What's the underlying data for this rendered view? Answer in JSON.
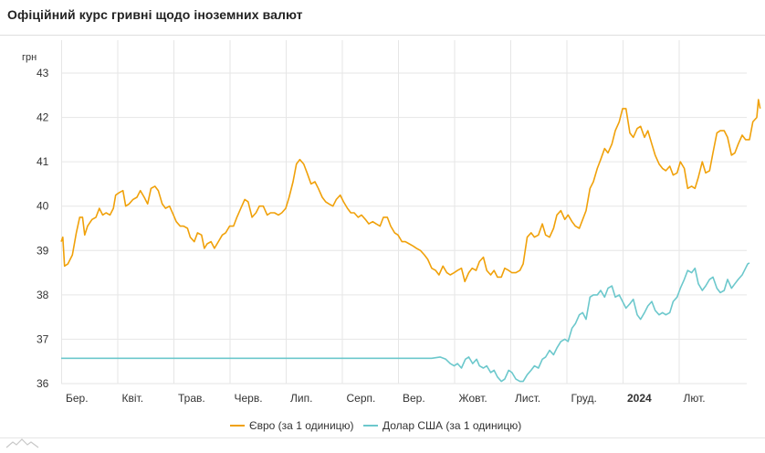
{
  "header": {
    "title": "Офіційний курс гривні щодо іноземних валют"
  },
  "colors": {
    "euro": "#f0a10a",
    "usd": "#6cc8cc",
    "grid": "#e6e6e6"
  },
  "icons": {
    "logo": "mountain-logo-icon"
  },
  "chart_data": {
    "type": "line",
    "title": "Офіційний курс гривні щодо іноземних валют",
    "ylabel": "грн",
    "xlabel": "",
    "ylim": [
      36,
      43
    ],
    "yticks": [
      36,
      37,
      38,
      39,
      40,
      41,
      42,
      43
    ],
    "grid": true,
    "legend_position": "bottom-center",
    "xlim": [
      0,
      12
    ],
    "x_unit": "months since 1 March 2023",
    "xticks": [
      {
        "x": 0,
        "label": "Бер.",
        "bold": false
      },
      {
        "x": 1,
        "label": "Квіт.",
        "bold": false
      },
      {
        "x": 2,
        "label": "Трав.",
        "bold": false
      },
      {
        "x": 3,
        "label": "Черв.",
        "bold": false
      },
      {
        "x": 4,
        "label": "Лип.",
        "bold": false
      },
      {
        "x": 5,
        "label": "Серп.",
        "bold": false
      },
      {
        "x": 6,
        "label": "Вер.",
        "bold": false
      },
      {
        "x": 7,
        "label": "Жовт.",
        "bold": false
      },
      {
        "x": 8,
        "label": "Лист.",
        "bold": false
      },
      {
        "x": 9,
        "label": "Груд.",
        "bold": false
      },
      {
        "x": 10,
        "label": "2024",
        "bold": true
      },
      {
        "x": 11,
        "label": "Лют.",
        "bold": false
      }
    ],
    "series": [
      {
        "name": "Євро (за 1 одиницю)",
        "color": "#f0a10a",
        "points": [
          [
            0.0,
            39.2
          ],
          [
            0.03,
            39.3
          ],
          [
            0.06,
            38.65
          ],
          [
            0.12,
            38.7
          ],
          [
            0.2,
            38.9
          ],
          [
            0.27,
            39.4
          ],
          [
            0.33,
            39.75
          ],
          [
            0.38,
            39.75
          ],
          [
            0.42,
            39.35
          ],
          [
            0.47,
            39.55
          ],
          [
            0.55,
            39.7
          ],
          [
            0.62,
            39.75
          ],
          [
            0.68,
            39.95
          ],
          [
            0.74,
            39.8
          ],
          [
            0.8,
            39.85
          ],
          [
            0.87,
            39.8
          ],
          [
            0.93,
            39.95
          ],
          [
            0.97,
            40.25
          ],
          [
            1.03,
            40.3
          ],
          [
            1.1,
            40.35
          ],
          [
            1.15,
            40.0
          ],
          [
            1.21,
            40.05
          ],
          [
            1.28,
            40.15
          ],
          [
            1.35,
            40.2
          ],
          [
            1.41,
            40.35
          ],
          [
            1.48,
            40.2
          ],
          [
            1.54,
            40.05
          ],
          [
            1.6,
            40.4
          ],
          [
            1.67,
            40.45
          ],
          [
            1.73,
            40.35
          ],
          [
            1.8,
            40.05
          ],
          [
            1.86,
            39.95
          ],
          [
            1.93,
            40.0
          ],
          [
            2.0,
            39.8
          ],
          [
            2.05,
            39.65
          ],
          [
            2.12,
            39.55
          ],
          [
            2.18,
            39.55
          ],
          [
            2.25,
            39.5
          ],
          [
            2.3,
            39.3
          ],
          [
            2.37,
            39.2
          ],
          [
            2.43,
            39.4
          ],
          [
            2.5,
            39.35
          ],
          [
            2.55,
            39.05
          ],
          [
            2.6,
            39.15
          ],
          [
            2.67,
            39.2
          ],
          [
            2.73,
            39.05
          ],
          [
            2.8,
            39.2
          ],
          [
            2.87,
            39.35
          ],
          [
            2.93,
            39.4
          ],
          [
            3.0,
            39.55
          ],
          [
            3.07,
            39.55
          ],
          [
            3.13,
            39.75
          ],
          [
            3.2,
            39.95
          ],
          [
            3.27,
            40.15
          ],
          [
            3.33,
            40.1
          ],
          [
            3.4,
            39.75
          ],
          [
            3.47,
            39.85
          ],
          [
            3.53,
            40.0
          ],
          [
            3.6,
            40.0
          ],
          [
            3.67,
            39.8
          ],
          [
            3.73,
            39.85
          ],
          [
            3.8,
            39.85
          ],
          [
            3.87,
            39.8
          ],
          [
            3.93,
            39.85
          ],
          [
            4.0,
            39.95
          ],
          [
            4.06,
            40.2
          ],
          [
            4.13,
            40.55
          ],
          [
            4.19,
            40.95
          ],
          [
            4.25,
            41.05
          ],
          [
            4.32,
            40.95
          ],
          [
            4.38,
            40.75
          ],
          [
            4.45,
            40.5
          ],
          [
            4.52,
            40.55
          ],
          [
            4.58,
            40.4
          ],
          [
            4.65,
            40.2
          ],
          [
            4.71,
            40.1
          ],
          [
            4.77,
            40.05
          ],
          [
            4.84,
            40.0
          ],
          [
            4.9,
            40.15
          ],
          [
            4.97,
            40.25
          ],
          [
            5.03,
            40.1
          ],
          [
            5.1,
            39.95
          ],
          [
            5.16,
            39.85
          ],
          [
            5.22,
            39.85
          ],
          [
            5.29,
            39.75
          ],
          [
            5.35,
            39.8
          ],
          [
            5.42,
            39.7
          ],
          [
            5.48,
            39.6
          ],
          [
            5.55,
            39.65
          ],
          [
            5.61,
            39.6
          ],
          [
            5.68,
            39.55
          ],
          [
            5.74,
            39.75
          ],
          [
            5.81,
            39.75
          ],
          [
            5.87,
            39.55
          ],
          [
            5.94,
            39.4
          ],
          [
            6.0,
            39.35
          ],
          [
            6.07,
            39.2
          ],
          [
            6.13,
            39.2
          ],
          [
            6.2,
            39.15
          ],
          [
            6.27,
            39.1
          ],
          [
            6.33,
            39.05
          ],
          [
            6.4,
            39.0
          ],
          [
            6.47,
            38.9
          ],
          [
            6.53,
            38.8
          ],
          [
            6.6,
            38.6
          ],
          [
            6.67,
            38.55
          ],
          [
            6.73,
            38.45
          ],
          [
            6.8,
            38.65
          ],
          [
            6.87,
            38.5
          ],
          [
            6.93,
            38.45
          ],
          [
            7.0,
            38.5
          ],
          [
            7.06,
            38.55
          ],
          [
            7.13,
            38.6
          ],
          [
            7.19,
            38.3
          ],
          [
            7.26,
            38.5
          ],
          [
            7.32,
            38.6
          ],
          [
            7.39,
            38.55
          ],
          [
            7.45,
            38.75
          ],
          [
            7.52,
            38.85
          ],
          [
            7.58,
            38.55
          ],
          [
            7.65,
            38.45
          ],
          [
            7.71,
            38.55
          ],
          [
            7.77,
            38.4
          ],
          [
            7.84,
            38.4
          ],
          [
            7.9,
            38.6
          ],
          [
            7.97,
            38.55
          ],
          [
            8.03,
            38.5
          ],
          [
            8.1,
            38.5
          ],
          [
            8.17,
            38.55
          ],
          [
            8.23,
            38.7
          ],
          [
            8.3,
            39.3
          ],
          [
            8.37,
            39.4
          ],
          [
            8.43,
            39.3
          ],
          [
            8.5,
            39.35
          ],
          [
            8.57,
            39.6
          ],
          [
            8.63,
            39.35
          ],
          [
            8.7,
            39.3
          ],
          [
            8.77,
            39.5
          ],
          [
            8.83,
            39.8
          ],
          [
            8.9,
            39.9
          ],
          [
            8.97,
            39.7
          ],
          [
            9.03,
            39.8
          ],
          [
            9.1,
            39.65
          ],
          [
            9.16,
            39.55
          ],
          [
            9.23,
            39.5
          ],
          [
            9.29,
            39.7
          ],
          [
            9.35,
            39.9
          ],
          [
            9.42,
            40.4
          ],
          [
            9.48,
            40.55
          ],
          [
            9.55,
            40.85
          ],
          [
            9.61,
            41.05
          ],
          [
            9.68,
            41.3
          ],
          [
            9.74,
            41.2
          ],
          [
            9.81,
            41.4
          ],
          [
            9.87,
            41.7
          ],
          [
            9.94,
            41.9
          ],
          [
            10.0,
            42.2
          ],
          [
            10.06,
            42.2
          ],
          [
            10.13,
            41.65
          ],
          [
            10.19,
            41.55
          ],
          [
            10.26,
            41.75
          ],
          [
            10.32,
            41.8
          ],
          [
            10.39,
            41.55
          ],
          [
            10.45,
            41.7
          ],
          [
            10.52,
            41.4
          ],
          [
            10.58,
            41.15
          ],
          [
            10.65,
            40.95
          ],
          [
            10.71,
            40.85
          ],
          [
            10.77,
            40.8
          ],
          [
            10.84,
            40.9
          ],
          [
            10.9,
            40.7
          ],
          [
            10.97,
            40.75
          ],
          [
            11.03,
            41.0
          ],
          [
            11.1,
            40.85
          ],
          [
            11.16,
            40.4
          ],
          [
            11.23,
            40.45
          ],
          [
            11.29,
            40.4
          ],
          [
            11.35,
            40.65
          ],
          [
            11.42,
            41.0
          ],
          [
            11.48,
            40.75
          ],
          [
            11.55,
            40.8
          ],
          [
            11.61,
            41.2
          ],
          [
            11.68,
            41.65
          ],
          [
            11.74,
            41.7
          ],
          [
            11.81,
            41.7
          ],
          [
            11.87,
            41.55
          ],
          [
            11.94,
            41.15
          ],
          [
            12.0,
            41.2
          ],
          [
            12.06,
            41.4
          ],
          [
            12.13,
            41.6
          ],
          [
            12.19,
            41.5
          ],
          [
            12.26,
            41.5
          ],
          [
            12.32,
            41.9
          ],
          [
            12.39,
            42.0
          ],
          [
            12.42,
            42.4
          ],
          [
            12.45,
            42.2
          ]
        ]
      },
      {
        "name": "Долар США (за 1 одиницю)",
        "color": "#6cc8cc",
        "points": [
          [
            0.0,
            36.57
          ],
          [
            6.6,
            36.57
          ],
          [
            6.75,
            36.6
          ],
          [
            6.85,
            36.55
          ],
          [
            6.93,
            36.45
          ],
          [
            7.0,
            36.4
          ],
          [
            7.06,
            36.45
          ],
          [
            7.13,
            36.35
          ],
          [
            7.2,
            36.55
          ],
          [
            7.26,
            36.6
          ],
          [
            7.33,
            36.45
          ],
          [
            7.4,
            36.55
          ],
          [
            7.45,
            36.4
          ],
          [
            7.52,
            36.35
          ],
          [
            7.58,
            36.4
          ],
          [
            7.65,
            36.25
          ],
          [
            7.71,
            36.3
          ],
          [
            7.77,
            36.15
          ],
          [
            7.84,
            36.05
          ],
          [
            7.9,
            36.1
          ],
          [
            7.97,
            36.3
          ],
          [
            8.03,
            36.25
          ],
          [
            8.1,
            36.1
          ],
          [
            8.17,
            36.05
          ],
          [
            8.23,
            36.05
          ],
          [
            8.3,
            36.2
          ],
          [
            8.37,
            36.3
          ],
          [
            8.43,
            36.4
          ],
          [
            8.5,
            36.35
          ],
          [
            8.57,
            36.55
          ],
          [
            8.63,
            36.6
          ],
          [
            8.7,
            36.75
          ],
          [
            8.77,
            36.65
          ],
          [
            8.83,
            36.8
          ],
          [
            8.9,
            36.95
          ],
          [
            8.97,
            37.0
          ],
          [
            9.03,
            36.95
          ],
          [
            9.1,
            37.25
          ],
          [
            9.16,
            37.35
          ],
          [
            9.23,
            37.55
          ],
          [
            9.29,
            37.6
          ],
          [
            9.35,
            37.45
          ],
          [
            9.42,
            37.95
          ],
          [
            9.48,
            38.0
          ],
          [
            9.55,
            38.0
          ],
          [
            9.61,
            38.1
          ],
          [
            9.68,
            37.95
          ],
          [
            9.74,
            38.15
          ],
          [
            9.81,
            38.2
          ],
          [
            9.87,
            37.95
          ],
          [
            9.94,
            38.0
          ],
          [
            10.0,
            37.85
          ],
          [
            10.06,
            37.7
          ],
          [
            10.13,
            37.8
          ],
          [
            10.19,
            37.9
          ],
          [
            10.26,
            37.55
          ],
          [
            10.32,
            37.45
          ],
          [
            10.39,
            37.6
          ],
          [
            10.45,
            37.75
          ],
          [
            10.52,
            37.85
          ],
          [
            10.58,
            37.65
          ],
          [
            10.65,
            37.55
          ],
          [
            10.71,
            37.6
          ],
          [
            10.77,
            37.55
          ],
          [
            10.84,
            37.6
          ],
          [
            10.9,
            37.85
          ],
          [
            10.97,
            37.95
          ],
          [
            11.03,
            38.15
          ],
          [
            11.1,
            38.35
          ],
          [
            11.16,
            38.55
          ],
          [
            11.23,
            38.5
          ],
          [
            11.29,
            38.6
          ],
          [
            11.35,
            38.25
          ],
          [
            11.42,
            38.1
          ],
          [
            11.48,
            38.2
          ],
          [
            11.55,
            38.35
          ],
          [
            11.61,
            38.4
          ],
          [
            11.68,
            38.15
          ],
          [
            11.74,
            38.05
          ],
          [
            11.81,
            38.1
          ],
          [
            11.87,
            38.35
          ],
          [
            11.94,
            38.15
          ],
          [
            12.0,
            38.25
          ],
          [
            12.06,
            38.35
          ],
          [
            12.13,
            38.45
          ],
          [
            12.19,
            38.6
          ],
          [
            12.23,
            38.7
          ],
          [
            12.26,
            38.72
          ]
        ]
      }
    ]
  }
}
